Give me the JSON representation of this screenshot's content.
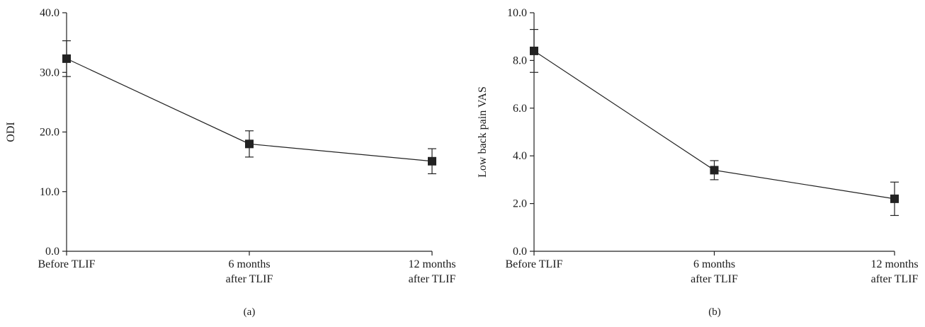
{
  "chart_data": [
    {
      "type": "line",
      "panel_label": "(a)",
      "ylabel": "ODI",
      "xlabel": "",
      "categories": [
        [
          "Before TLIF"
        ],
        [
          "6 months",
          "after TLIF"
        ],
        [
          "12 months",
          "after TLIF"
        ]
      ],
      "yticks": [
        "0.0",
        "10.0",
        "20.0",
        "30.0",
        "40.0"
      ],
      "ylim": [
        0,
        40
      ],
      "grid": false,
      "series": [
        {
          "values": [
            32.3,
            18.0,
            15.1
          ],
          "error": [
            3.0,
            2.2,
            2.1
          ]
        }
      ]
    },
    {
      "type": "line",
      "panel_label": "(b)",
      "ylabel": "Low back pain VAS",
      "xlabel": "",
      "categories": [
        [
          "Before TLIF"
        ],
        [
          "6 months",
          "after TLIF"
        ],
        [
          "12 months",
          "after TLIF"
        ]
      ],
      "yticks": [
        "0.0",
        "2.0",
        "4.0",
        "6.0",
        "8.0",
        "10.0"
      ],
      "ylim": [
        0,
        10
      ],
      "grid": false,
      "series": [
        {
          "values": [
            8.4,
            3.4,
            2.2
          ],
          "error": [
            0.9,
            0.4,
            0.7
          ]
        }
      ]
    }
  ]
}
